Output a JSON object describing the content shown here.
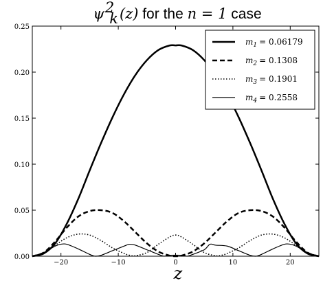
{
  "chart_data": {
    "type": "line",
    "title_math": "ψ",
    "title_sub": "k",
    "title_sup": "2",
    "title_arg": "(z)",
    "title_text": " for the ",
    "title_n": "n = 1",
    "title_tail": " case",
    "xlabel": "z",
    "ylabel": "",
    "xlim": [
      -25,
      25
    ],
    "ylim": [
      0,
      0.25
    ],
    "xticks": [
      -20,
      -10,
      0,
      10,
      20
    ],
    "xtick_labels": [
      "−20",
      "−10",
      "0",
      "10",
      "20"
    ],
    "yticks": [
      0,
      0.05,
      0.1,
      0.15,
      0.2,
      0.25
    ],
    "ytick_labels": [
      "0.00",
      "0.05",
      "0.10",
      "0.15",
      "0.20",
      "0.25"
    ],
    "grid": false,
    "legend_position": "top-right",
    "series": [
      {
        "name": "m1 = 0.06179",
        "label_sym": "m",
        "label_sub": "1",
        "label_val": "= 0.06179",
        "style": "solid-thick",
        "points": [
          [
            -25,
            0
          ],
          [
            -23,
            0.003
          ],
          [
            -21,
            0.014
          ],
          [
            -19,
            0.035
          ],
          [
            -17,
            0.062
          ],
          [
            -15,
            0.093
          ],
          [
            -13,
            0.123
          ],
          [
            -11,
            0.151
          ],
          [
            -9,
            0.176
          ],
          [
            -7,
            0.197
          ],
          [
            -5,
            0.213
          ],
          [
            -3,
            0.224
          ],
          [
            -1,
            0.229
          ],
          [
            0,
            0.229
          ],
          [
            1,
            0.229
          ],
          [
            3,
            0.224
          ],
          [
            5,
            0.213
          ],
          [
            7,
            0.197
          ],
          [
            9,
            0.176
          ],
          [
            11,
            0.151
          ],
          [
            13,
            0.123
          ],
          [
            15,
            0.093
          ],
          [
            17,
            0.062
          ],
          [
            19,
            0.035
          ],
          [
            21,
            0.014
          ],
          [
            23,
            0.003
          ],
          [
            25,
            0
          ]
        ]
      },
      {
        "name": "m2 = 0.1308",
        "label_sym": "m",
        "label_sub": "2",
        "label_val": "= 0.1308",
        "style": "dashed",
        "points": [
          [
            -25,
            0
          ],
          [
            -23,
            0.004
          ],
          [
            -21,
            0.016
          ],
          [
            -19,
            0.031
          ],
          [
            -17,
            0.043
          ],
          [
            -15,
            0.049
          ],
          [
            -13,
            0.05
          ],
          [
            -11,
            0.047
          ],
          [
            -9,
            0.038
          ],
          [
            -7,
            0.026
          ],
          [
            -5,
            0.014
          ],
          [
            -3,
            0.005
          ],
          [
            -1,
            0.0006
          ],
          [
            0,
            0
          ],
          [
            1,
            0.0006
          ],
          [
            3,
            0.005
          ],
          [
            5,
            0.014
          ],
          [
            7,
            0.026
          ],
          [
            9,
            0.038
          ],
          [
            11,
            0.047
          ],
          [
            13,
            0.05
          ],
          [
            15,
            0.049
          ],
          [
            17,
            0.043
          ],
          [
            19,
            0.031
          ],
          [
            21,
            0.016
          ],
          [
            23,
            0.004
          ],
          [
            25,
            0
          ]
        ]
      },
      {
        "name": "m3 = 0.1901",
        "label_sym": "m",
        "label_sub": "3",
        "label_val": "= 0.1901",
        "style": "dotted",
        "points": [
          [
            -25,
            0
          ],
          [
            -23,
            0.004
          ],
          [
            -21,
            0.012
          ],
          [
            -19,
            0.02
          ],
          [
            -17,
            0.024
          ],
          [
            -15,
            0.023
          ],
          [
            -13,
            0.017
          ],
          [
            -11,
            0.009
          ],
          [
            -9,
            0.003
          ],
          [
            -8,
            0.001
          ],
          [
            -7,
            0.0005
          ],
          [
            -5,
            0.004
          ],
          [
            -3,
            0.013
          ],
          [
            -1,
            0.021
          ],
          [
            0,
            0.023
          ],
          [
            1,
            0.021
          ],
          [
            3,
            0.013
          ],
          [
            5,
            0.004
          ],
          [
            7,
            0.0005
          ],
          [
            8,
            0.001
          ],
          [
            9,
            0.003
          ],
          [
            11,
            0.009
          ],
          [
            13,
            0.017
          ],
          [
            15,
            0.023
          ],
          [
            17,
            0.024
          ],
          [
            19,
            0.02
          ],
          [
            21,
            0.012
          ],
          [
            23,
            0.004
          ],
          [
            25,
            0
          ]
        ]
      },
      {
        "name": "m4 = 0.2558",
        "label_sym": "m",
        "label_sub": "4",
        "label_val": "= 0.2558",
        "style": "solid-thin",
        "points": [
          [
            -25,
            0
          ],
          [
            -23,
            0.004
          ],
          [
            -21,
            0.011
          ],
          [
            -20,
            0.013
          ],
          [
            -19,
            0.013
          ],
          [
            -17,
            0.008
          ],
          [
            -15,
            0.002
          ],
          [
            -14,
            0
          ],
          [
            -13,
            0.001
          ],
          [
            -11,
            0.006
          ],
          [
            -9,
            0.011
          ],
          [
            -8,
            0.013
          ],
          [
            -7,
            0.012
          ],
          [
            -5,
            0.007
          ],
          [
            -3,
            0.002
          ],
          [
            -2,
            0
          ],
          [
            -1,
            0.001
          ],
          [
            1,
            0.001
          ],
          [
            2,
            0
          ],
          [
            3,
            0.002
          ],
          [
            5,
            0.007
          ],
          [
            6,
            0.013
          ],
          [
            7,
            0.012
          ],
          [
            9,
            0.011
          ],
          [
            11,
            0.006
          ],
          [
            13,
            0.001
          ],
          [
            14,
            0
          ],
          [
            15,
            0.002
          ],
          [
            17,
            0.008
          ],
          [
            19,
            0.013
          ],
          [
            20,
            0.013
          ],
          [
            21,
            0.011
          ],
          [
            23,
            0.004
          ],
          [
            25,
            0
          ]
        ]
      }
    ]
  }
}
